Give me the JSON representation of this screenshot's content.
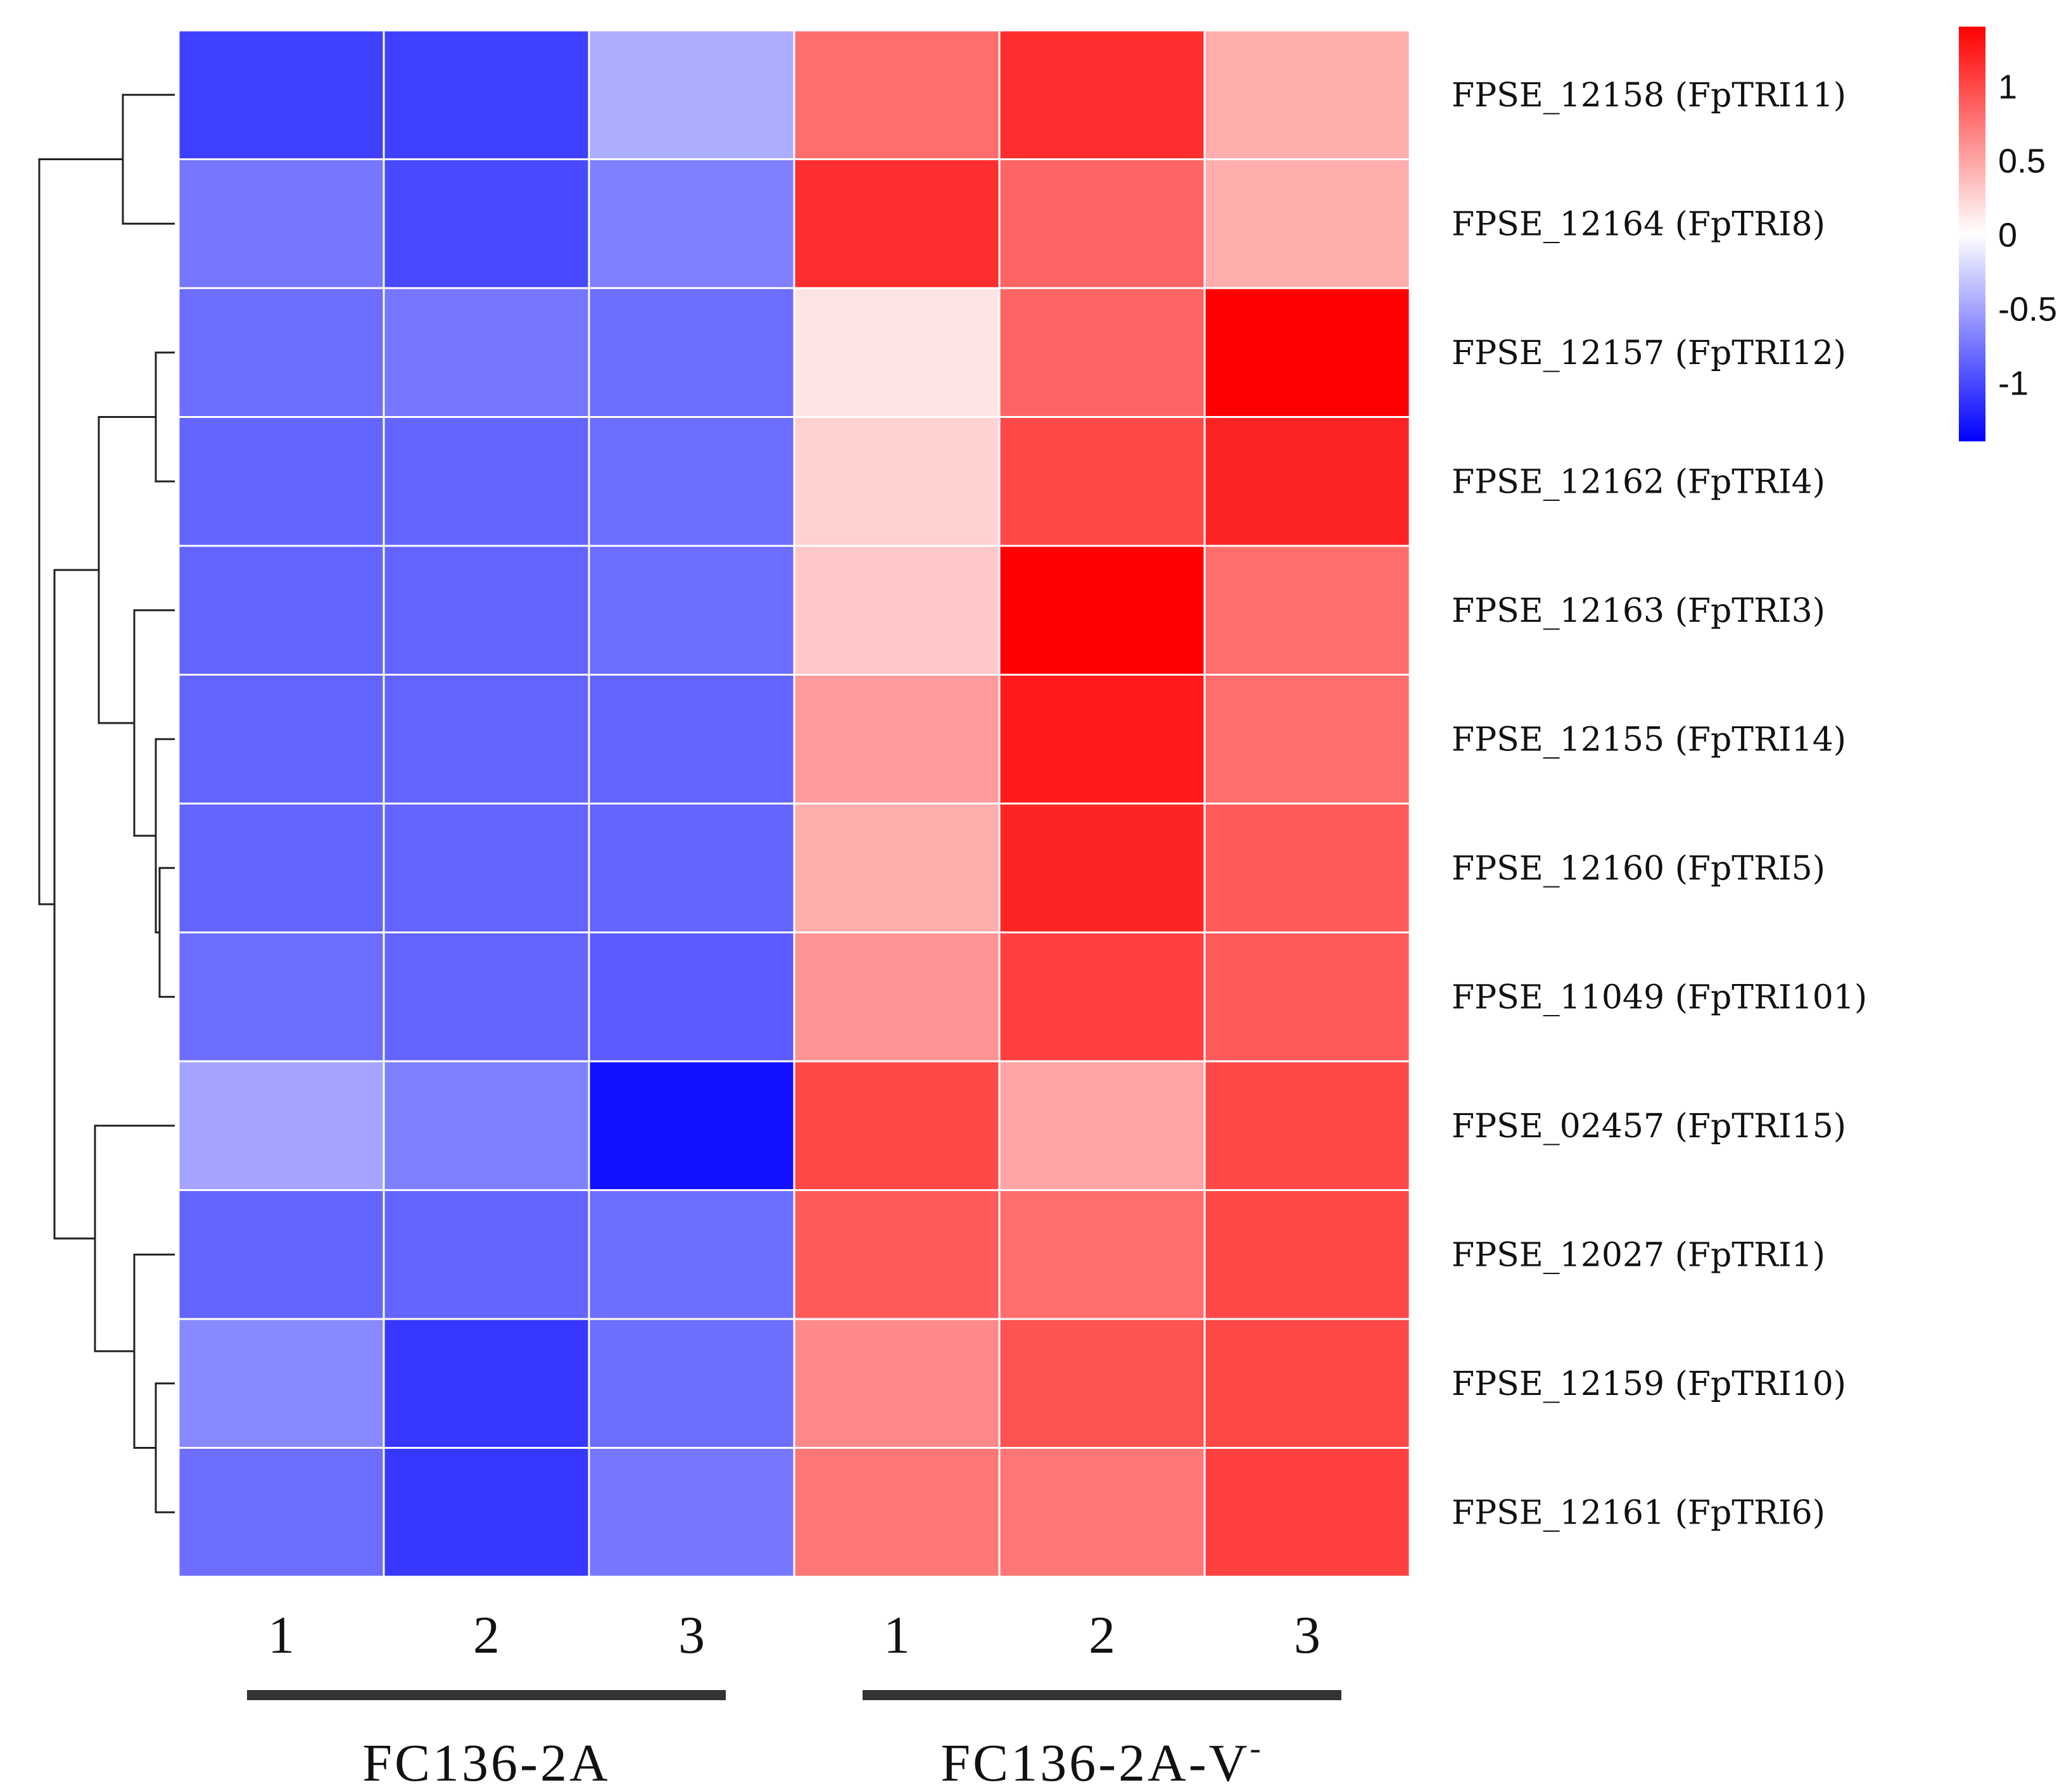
{
  "chart_data": {
    "type": "heatmap",
    "rows": [
      "FPSE_12158 (FpTRI11)",
      "FPSE_12164 (FpTRI8)",
      "FPSE_12157 (FpTRI12)",
      "FPSE_12162 (FpTRI4)",
      "FPSE_12163 (FpTRI3)",
      "FPSE_12155 (FpTRI14)",
      "FPSE_12160 (FpTRI5)",
      "FPSE_11049 (FpTRI101)",
      "FPSE_02457 (FpTRI15)",
      "FPSE_12027 (FpTRI1)",
      "FPSE_12159 (FpTRI10)",
      "FPSE_12161 (FpTRI6)"
    ],
    "columns": [
      "1",
      "2",
      "3",
      "1",
      "2",
      "3"
    ],
    "groups": [
      {
        "name": "FC136-2A",
        "columns": [
          0,
          1,
          2
        ]
      },
      {
        "name": "FC136-2A-V",
        "superscript": "-",
        "columns": [
          3,
          4,
          5
        ]
      }
    ],
    "values": [
      [
        -1.05,
        -1.05,
        -0.45,
        0.8,
        1.15,
        0.45
      ],
      [
        -0.75,
        -1.0,
        -0.7,
        1.15,
        0.85,
        0.45
      ],
      [
        -0.8,
        -0.75,
        -0.8,
        0.15,
        0.85,
        1.4
      ],
      [
        -0.85,
        -0.85,
        -0.8,
        0.25,
        1.0,
        1.2
      ],
      [
        -0.85,
        -0.85,
        -0.8,
        0.3,
        1.4,
        0.8
      ],
      [
        -0.85,
        -0.85,
        -0.85,
        0.55,
        1.25,
        0.8
      ],
      [
        -0.85,
        -0.85,
        -0.85,
        0.45,
        1.2,
        0.9
      ],
      [
        -0.8,
        -0.85,
        -0.9,
        0.6,
        1.05,
        0.9
      ],
      [
        -0.5,
        -0.7,
        -1.3,
        1.0,
        0.5,
        1.0
      ],
      [
        -0.85,
        -0.85,
        -0.8,
        0.9,
        0.8,
        1.0
      ],
      [
        -0.65,
        -1.1,
        -0.8,
        0.65,
        0.95,
        1.0
      ],
      [
        -0.8,
        -1.1,
        -0.75,
        0.75,
        0.75,
        1.05
      ]
    ],
    "color_scale": {
      "min": -1.4,
      "max": 1.4,
      "low_color": "#0000ff",
      "mid_color": "#ffffff",
      "high_color": "#ff0000",
      "ticks": [
        1,
        0.5,
        0,
        -0.5,
        -1
      ],
      "tick_labels": [
        "1",
        "0.5",
        "0",
        "-0.5",
        "-1"
      ]
    },
    "row_dendrogram": true,
    "legend_position": "top-right"
  }
}
